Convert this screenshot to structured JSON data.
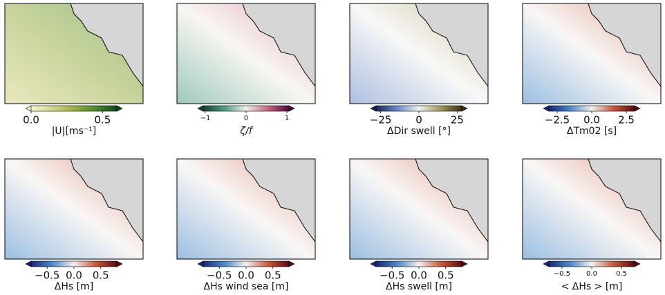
{
  "chart_data": [
    {
      "type": "colormap",
      "xlabel": "|U|[ms⁻¹]",
      "xlim": [
        0,
        0.6
      ],
      "xticks": [
        {
          "value": 0,
          "label": "0.0"
        },
        0.5
      ],
      "colors": [
        "#f8f6d0",
        "#d8d48a",
        "#9ab04a",
        "#4a8a2a",
        "#0f4a1a"
      ]
    },
    {
      "type": "colormap",
      "xlabel": "ζ/f",
      "xlim": [
        -1.05,
        1.05
      ],
      "xticks": [
        {
          "value": -1,
          "label": "−1"
        },
        0,
        1
      ],
      "colors": [
        "#14413a",
        "#4e9e84",
        "#f4efe8",
        "#c86a80",
        "#4a0a3a"
      ]
    },
    {
      "type": "colormap",
      "xlabel": "ΔDir swell [°]",
      "xlim": [
        -28,
        28
      ],
      "xticks": [
        {
          "value": -25,
          "label": "−25"
        },
        0,
        25
      ],
      "colors": [
        "#1a2858",
        "#6a8ac8",
        "#f2f2f0",
        "#a89a5a",
        "#3a3010"
      ]
    },
    {
      "type": "colormap",
      "xlabel": "ΔTm02 [s]",
      "xlim": [
        -3.1,
        3.1
      ],
      "xticks": [
        {
          "value": -2.5,
          "label": "−2.5"
        },
        {
          "value": 0,
          "label": "0.0"
        },
        2.5
      ],
      "colors": [
        "#17257a",
        "#4a8ac8",
        "#f5f0ee",
        "#c85a3a",
        "#5a0a10"
      ]
    },
    {
      "type": "colormap",
      "xlabel": "ΔHs [m]",
      "xlim": [
        -0.8,
        0.8
      ],
      "xticks": [
        {
          "value": -0.5,
          "label": "−0.5"
        },
        {
          "value": 0,
          "label": "0.0"
        },
        0.5
      ],
      "colors": [
        "#17257a",
        "#4a8ac8",
        "#f5f0ee",
        "#c85a3a",
        "#5a0a10"
      ]
    },
    {
      "type": "colormap",
      "xlabel": "ΔHs wind sea [m]",
      "xlim": [
        -0.8,
        0.8
      ],
      "xticks": [
        {
          "value": -0.5,
          "label": "−0.5"
        },
        {
          "value": 0,
          "label": "0.0"
        },
        0.5
      ],
      "colors": [
        "#17257a",
        "#4a8ac8",
        "#f5f0ee",
        "#c85a3a",
        "#5a0a10"
      ]
    },
    {
      "type": "colormap",
      "xlabel": "ΔHs swell [m]",
      "xlim": [
        -0.8,
        0.8
      ],
      "xticks": [
        {
          "value": -0.5,
          "label": "−0.5"
        },
        {
          "value": 0,
          "label": "0.0"
        },
        0.5
      ],
      "colors": [
        "#17257a",
        "#4a8ac8",
        "#f5f0ee",
        "#c85a3a",
        "#5a0a10"
      ]
    },
    {
      "type": "colormap",
      "xlabel": "< ΔHs > [m]",
      "xlim": [
        -0.72,
        0.72
      ],
      "xticks": [
        {
          "value": -0.5,
          "label": "−0.5"
        },
        {
          "value": 0,
          "label": "0.0"
        },
        0.5
      ],
      "colors": [
        "#17257a",
        "#4a8ac8",
        "#f5f0ee",
        "#c85a3a",
        "#5a0a10"
      ]
    }
  ]
}
